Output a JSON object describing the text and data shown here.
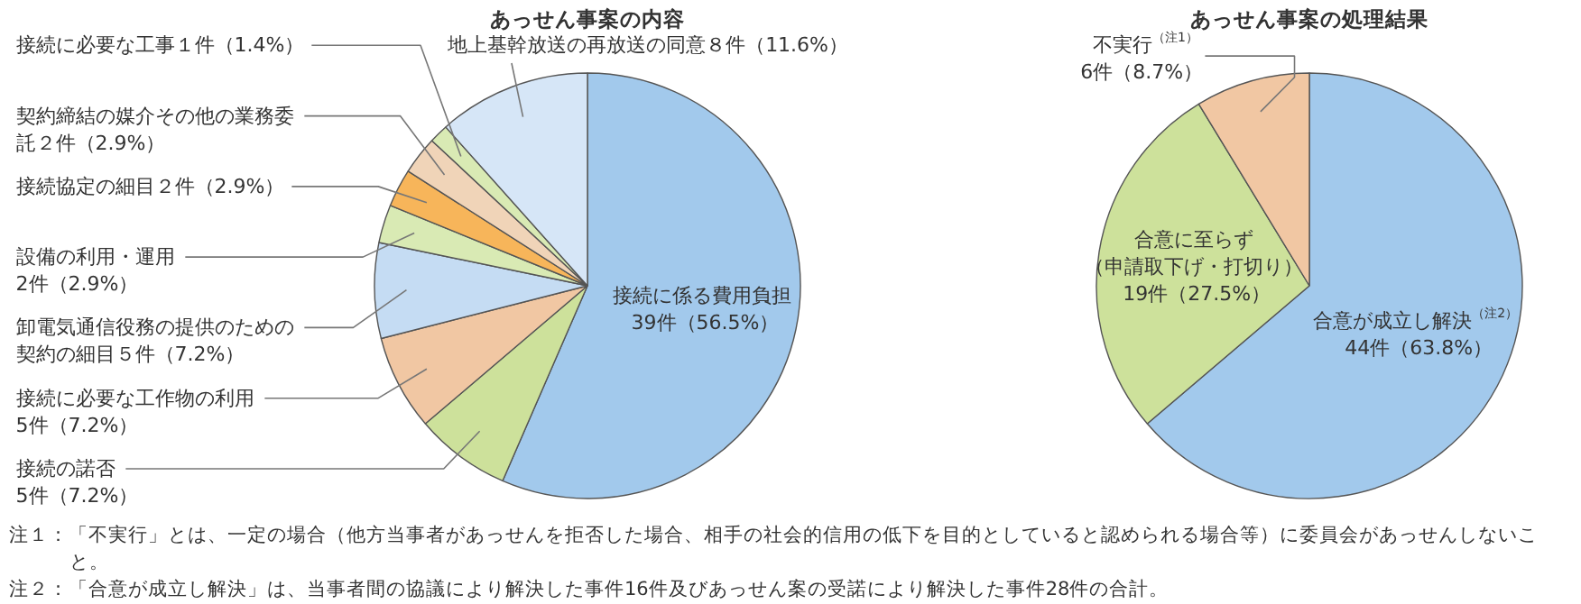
{
  "chart_data": [
    {
      "type": "pie",
      "title": "あっせん事案の内容",
      "categories": [
        "接続に係る費用負担39件（56.5%）",
        "接続の諾否5件（7.2%）",
        "接続に必要な工作物の利用5件（7.2%）",
        "卸電気通信役務の提供のための契約の細目５件（7.2%）",
        "設備の利用・運用2件（2.9%）",
        "接続協定の細目２件（2.9%）",
        "契約締結の媒介その他の業務委託２件（2.9%）",
        "接続に必要な工事１件（1.4%）",
        "地上基幹放送の再放送の同意８件（11.6%）"
      ],
      "values": [
        39,
        5,
        5,
        5,
        2,
        2,
        2,
        1,
        8
      ],
      "colors": [
        "#a2c9ec",
        "#cde19b",
        "#f1c7a3",
        "#c5dcf3",
        "#d9eab4",
        "#f7b55a",
        "#f0d4b8",
        "#d9eab4",
        "#d6e6f7"
      ]
    },
    {
      "type": "pie",
      "title": "あっせん事案の処理結果",
      "categories": [
        "合意が成立し解決$^{（注2）}$44件（63.8%）",
        "合意に至らず（申請取下げ・打切り）19件（27.5%）",
        "不実行$^{（注1）}$6件（8.7%）"
      ],
      "values": [
        44,
        19,
        6
      ],
      "colors": [
        "#a2c9ec",
        "#cde19b",
        "#f1c7a3"
      ],
      "annotations": [
        "注１：「不実行」とは、一定の場合（他方当事者があっせんを拒否した場合、相手の社会的信用の低下を目的としていると認められる場合等）に委員会があっせんしないこと。",
        "注２：「合意が成立し解決」は、当事者間の協議により解決した事件16件及びあっせん案の受諾により解決した事件28件の合計。"
      ]
    }
  ]
}
